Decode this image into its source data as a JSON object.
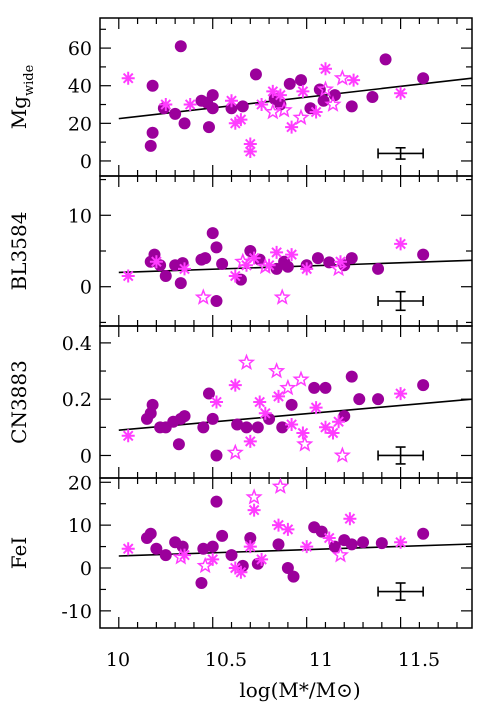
{
  "chart_data": {
    "type": "scatter",
    "xlabel": "log(M*/M⊙)",
    "x_ticks": [
      "10",
      "10.5",
      "11",
      "11.5"
    ],
    "xlim": [
      9.9,
      11.88
    ],
    "legend": "none",
    "grid": false,
    "colors": {
      "filled_circle": "#9b009b",
      "asterisk": "#ff3cff",
      "open_star": "#ff3cff",
      "line": "#000000"
    },
    "panels": [
      {
        "ylabel_main": "Mg",
        "ylabel_sub": "wide",
        "ylim": [
          -8,
          76
        ],
        "y_ticks": [
          "0",
          "20",
          "40",
          "60"
        ],
        "fit": {
          "x": [
            10.0,
            11.88
          ],
          "y": [
            22.5,
            44
          ]
        },
        "error_bar": {
          "x": 11.5,
          "y": 4,
          "xerr": 0.12,
          "yerr": 3
        },
        "series": [
          {
            "marker": "filled_circle",
            "points": [
              [
                10.17,
                8
              ],
              [
                10.18,
                15
              ],
              [
                10.18,
                40
              ],
              [
                10.24,
                28
              ],
              [
                10.3,
                25
              ],
              [
                10.33,
                61
              ],
              [
                10.35,
                20
              ],
              [
                10.44,
                32
              ],
              [
                10.47,
                31
              ],
              [
                10.48,
                18
              ],
              [
                10.5,
                28
              ],
              [
                10.5,
                35
              ],
              [
                10.6,
                28
              ],
              [
                10.66,
                29
              ],
              [
                10.73,
                46
              ],
              [
                10.83,
                33
              ],
              [
                10.86,
                30
              ],
              [
                10.91,
                41
              ],
              [
                10.97,
                43
              ],
              [
                11.02,
                28
              ],
              [
                11.07,
                38
              ],
              [
                11.09,
                32
              ],
              [
                11.15,
                35
              ],
              [
                11.24,
                29
              ],
              [
                11.35,
                34
              ],
              [
                11.42,
                54
              ],
              [
                11.62,
                44
              ]
            ]
          },
          {
            "marker": "asterisk",
            "points": [
              [
                10.05,
                44
              ],
              [
                10.25,
                30
              ],
              [
                10.38,
                30
              ],
              [
                10.6,
                32
              ],
              [
                10.62,
                20
              ],
              [
                10.65,
                22
              ],
              [
                10.7,
                5
              ],
              [
                10.7,
                9
              ],
              [
                10.76,
                30
              ],
              [
                10.82,
                37
              ],
              [
                10.86,
                35
              ],
              [
                10.92,
                18
              ],
              [
                10.98,
                37
              ],
              [
                11.05,
                26
              ],
              [
                11.1,
                49
              ],
              [
                11.25,
                43
              ],
              [
                11.5,
                36
              ]
            ]
          },
          {
            "marker": "open_star",
            "points": [
              [
                10.82,
                26
              ],
              [
                10.88,
                27
              ],
              [
                10.97,
                23
              ],
              [
                11.1,
                38
              ],
              [
                11.14,
                30
              ],
              [
                11.19,
                44
              ]
            ]
          }
        ]
      },
      {
        "ylabel_main": "BL3584",
        "ylabel_sub": "",
        "ylim": [
          -5.5,
          15.5
        ],
        "y_ticks": [
          "0",
          "10"
        ],
        "fit": {
          "x": [
            10.0,
            11.88
          ],
          "y": [
            2.0,
            3.7
          ]
        },
        "error_bar": {
          "x": 11.5,
          "y": -2,
          "xerr": 0.12,
          "yerr": 1.3
        },
        "series": [
          {
            "marker": "filled_circle",
            "points": [
              [
                10.17,
                3.5
              ],
              [
                10.19,
                4.5
              ],
              [
                10.22,
                3.0
              ],
              [
                10.25,
                1.5
              ],
              [
                10.3,
                3.0
              ],
              [
                10.33,
                0.5
              ],
              [
                10.34,
                3.3
              ],
              [
                10.44,
                3.8
              ],
              [
                10.46,
                4.0
              ],
              [
                10.5,
                7.5
              ],
              [
                10.52,
                5.5
              ],
              [
                10.52,
                -2.0
              ],
              [
                10.55,
                3.2
              ],
              [
                10.65,
                1.0
              ],
              [
                10.7,
                5.0
              ],
              [
                10.75,
                3.8
              ],
              [
                10.84,
                2.5
              ],
              [
                10.88,
                3.5
              ],
              [
                10.9,
                2.8
              ],
              [
                11.0,
                3.0
              ],
              [
                11.06,
                4.0
              ],
              [
                11.12,
                3.4
              ],
              [
                11.2,
                3.0
              ],
              [
                11.24,
                4.0
              ],
              [
                11.38,
                2.5
              ],
              [
                11.62,
                4.5
              ]
            ]
          },
          {
            "marker": "asterisk",
            "points": [
              [
                10.05,
                1.5
              ],
              [
                10.2,
                3.5
              ],
              [
                10.35,
                2.5
              ],
              [
                10.62,
                1.5
              ],
              [
                10.68,
                3.0
              ],
              [
                10.72,
                4.0
              ],
              [
                10.8,
                3.0
              ],
              [
                10.84,
                4.8
              ],
              [
                10.92,
                4.5
              ],
              [
                11.0,
                2.5
              ],
              [
                11.18,
                3.5
              ],
              [
                11.5,
                6.0
              ]
            ]
          },
          {
            "marker": "open_star",
            "points": [
              [
                10.45,
                -1.5
              ],
              [
                10.66,
                3.5
              ],
              [
                10.78,
                2.8
              ],
              [
                10.87,
                -1.5
              ],
              [
                11.17,
                2.5
              ]
            ]
          }
        ]
      },
      {
        "ylabel_main": "CN3883",
        "ylabel_sub": "",
        "ylim": [
          -0.08,
          0.46
        ],
        "y_ticks": [
          "0",
          "0.2",
          "0.4"
        ],
        "fit": {
          "x": [
            10.0,
            11.88
          ],
          "y": [
            0.09,
            0.2
          ]
        },
        "error_bar": {
          "x": 11.5,
          "y": 0.0,
          "xerr": 0.12,
          "yerr": 0.03
        },
        "series": [
          {
            "marker": "filled_circle",
            "points": [
              [
                10.15,
                0.13
              ],
              [
                10.17,
                0.15
              ],
              [
                10.18,
                0.18
              ],
              [
                10.22,
                0.1
              ],
              [
                10.25,
                0.1
              ],
              [
                10.29,
                0.12
              ],
              [
                10.32,
                0.04
              ],
              [
                10.33,
                0.13
              ],
              [
                10.35,
                0.14
              ],
              [
                10.45,
                0.1
              ],
              [
                10.48,
                0.22
              ],
              [
                10.5,
                0.13
              ],
              [
                10.52,
                0.0
              ],
              [
                10.63,
                0.11
              ],
              [
                10.68,
                0.1
              ],
              [
                10.74,
                0.1
              ],
              [
                10.8,
                0.13
              ],
              [
                10.87,
                0.1
              ],
              [
                10.92,
                0.18
              ],
              [
                11.04,
                0.24
              ],
              [
                11.1,
                0.24
              ],
              [
                11.2,
                0.14
              ],
              [
                11.24,
                0.28
              ],
              [
                11.28,
                0.2
              ],
              [
                11.38,
                0.2
              ],
              [
                11.62,
                0.25
              ]
            ]
          },
          {
            "marker": "asterisk",
            "points": [
              [
                10.05,
                0.07
              ],
              [
                10.52,
                0.19
              ],
              [
                10.62,
                0.25
              ],
              [
                10.7,
                0.05
              ],
              [
                10.75,
                0.19
              ],
              [
                10.78,
                0.15
              ],
              [
                10.85,
                0.21
              ],
              [
                10.92,
                0.11
              ],
              [
                10.98,
                0.08
              ],
              [
                11.05,
                0.17
              ],
              [
                11.1,
                0.1
              ],
              [
                11.14,
                0.08
              ],
              [
                11.17,
                0.12
              ],
              [
                11.5,
                0.22
              ]
            ]
          },
          {
            "marker": "open_star",
            "points": [
              [
                10.62,
                0.01
              ],
              [
                10.68,
                0.33
              ],
              [
                10.84,
                0.3
              ],
              [
                10.9,
                0.24
              ],
              [
                10.97,
                0.27
              ],
              [
                10.99,
                0.04
              ],
              [
                11.19,
                0.0
              ]
            ]
          }
        ]
      },
      {
        "ylabel_main": "FeI",
        "ylabel_sub": "",
        "ylim": [
          -14,
          21
        ],
        "y_ticks": [
          "-10",
          "0",
          "10",
          "20"
        ],
        "fit": {
          "x": [
            10.0,
            11.88
          ],
          "y": [
            2.8,
            5.6
          ]
        },
        "error_bar": {
          "x": 11.5,
          "y": -5.5,
          "xerr": 0.12,
          "yerr": 2.0
        },
        "series": [
          {
            "marker": "filled_circle",
            "points": [
              [
                10.15,
                7.0
              ],
              [
                10.17,
                8.0
              ],
              [
                10.2,
                4.5
              ],
              [
                10.25,
                3.0
              ],
              [
                10.3,
                6.0
              ],
              [
                10.34,
                5.0
              ],
              [
                10.44,
                -3.5
              ],
              [
                10.45,
                4.5
              ],
              [
                10.5,
                5.0
              ],
              [
                10.52,
                15.5
              ],
              [
                10.55,
                7.5
              ],
              [
                10.6,
                3.0
              ],
              [
                10.66,
                0.5
              ],
              [
                10.7,
                7.0
              ],
              [
                10.74,
                1.0
              ],
              [
                10.85,
                5.5
              ],
              [
                10.9,
                0.0
              ],
              [
                10.93,
                -2.0
              ],
              [
                11.04,
                9.5
              ],
              [
                11.08,
                8.5
              ],
              [
                11.15,
                5.0
              ],
              [
                11.2,
                6.5
              ],
              [
                11.24,
                5.5
              ],
              [
                11.3,
                6.0
              ],
              [
                11.4,
                5.8
              ],
              [
                11.62,
                8.0
              ]
            ]
          },
          {
            "marker": "asterisk",
            "points": [
              [
                10.05,
                4.5
              ],
              [
                10.35,
                3.0
              ],
              [
                10.5,
                2.0
              ],
              [
                10.62,
                0.0
              ],
              [
                10.65,
                -1.0
              ],
              [
                10.7,
                5.0
              ],
              [
                10.72,
                13.5
              ],
              [
                10.76,
                2.0
              ],
              [
                10.85,
                10.0
              ],
              [
                10.9,
                9.0
              ],
              [
                11.0,
                5.0
              ],
              [
                11.12,
                7.0
              ],
              [
                11.23,
                11.5
              ],
              [
                11.5,
                6.0
              ]
            ]
          },
          {
            "marker": "open_star",
            "points": [
              [
                10.33,
                2.5
              ],
              [
                10.46,
                0.5
              ],
              [
                10.72,
                16.5
              ],
              [
                10.86,
                19.0
              ],
              [
                11.18,
                3.0
              ]
            ]
          }
        ]
      }
    ]
  }
}
